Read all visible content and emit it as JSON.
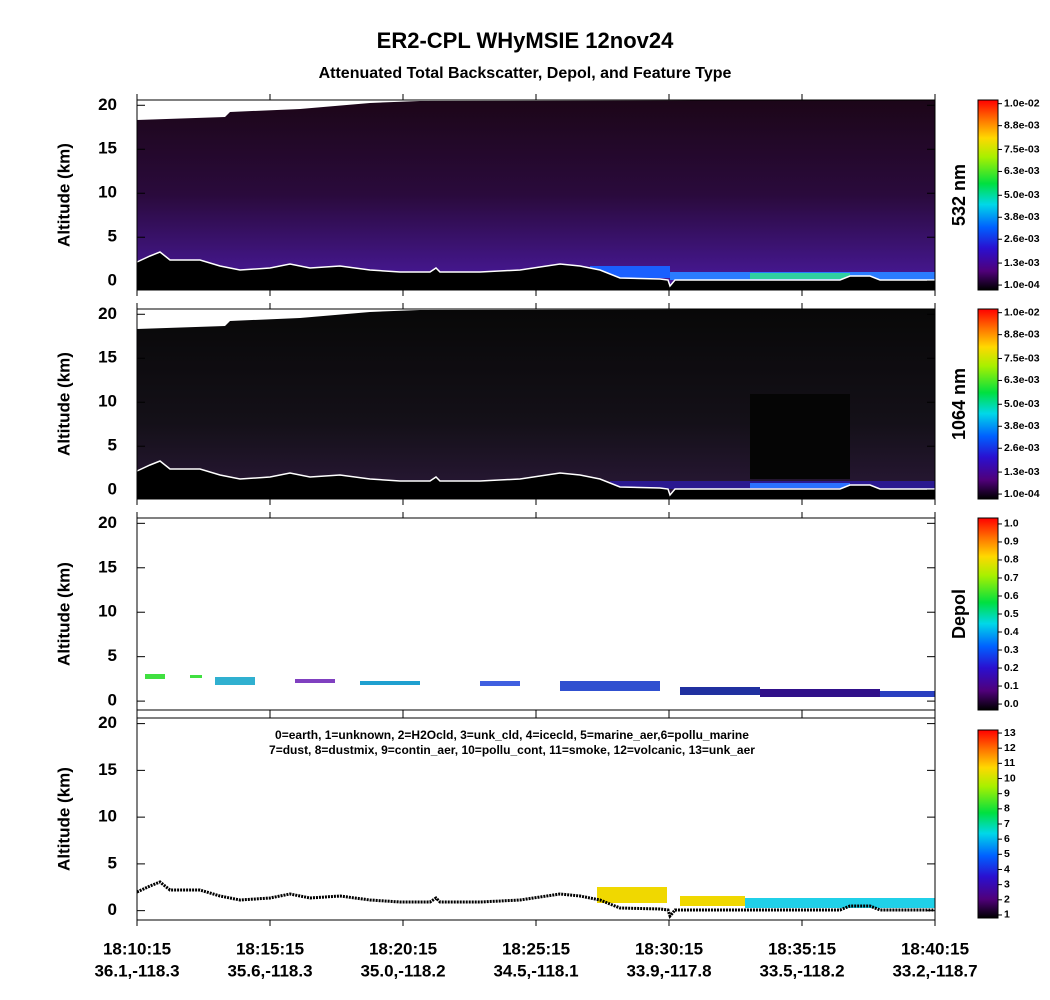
{
  "header": {
    "title": "ER2-CPL WHyMSIE 12nov24",
    "subtitle": "Attenuated Total Backscatter, Depol, and Feature Type"
  },
  "chart_data": [
    {
      "type": "heatmap",
      "ylabel": "Altitude (km)",
      "ylim": [
        -1,
        20.6
      ],
      "yticks": [
        0,
        5,
        10,
        15,
        20
      ],
      "colorbar": {
        "label": "532 nm",
        "clim": [
          -0.00017,
          0.0102
        ],
        "ticks": [
          {
            "value": 0.0001,
            "label": "1.0e-04"
          },
          {
            "value": 0.0013,
            "label": "1.3e-03"
          },
          {
            "value": 0.0026,
            "label": "2.6e-03"
          },
          {
            "value": 0.0038,
            "label": "3.8e-03"
          },
          {
            "value": 0.005,
            "label": "5.0e-03"
          },
          {
            "value": 0.0063,
            "label": "6.3e-03"
          },
          {
            "value": 0.0075,
            "label": "7.5e-03"
          },
          {
            "value": 0.0088,
            "label": "8.8e-03"
          },
          {
            "value": 0.01,
            "label": "1.0e-02"
          }
        ]
      }
    },
    {
      "type": "heatmap",
      "ylabel": "Altitude (km)",
      "ylim": [
        -1,
        20.6
      ],
      "yticks": [
        0,
        5,
        10,
        15,
        20
      ],
      "colorbar": {
        "label": "1064 nm",
        "clim": [
          -0.00017,
          0.0102
        ],
        "ticks": [
          {
            "value": 0.0001,
            "label": "1.0e-04"
          },
          {
            "value": 0.0013,
            "label": "1.3e-03"
          },
          {
            "value": 0.0026,
            "label": "2.6e-03"
          },
          {
            "value": 0.0038,
            "label": "3.8e-03"
          },
          {
            "value": 0.005,
            "label": "5.0e-03"
          },
          {
            "value": 0.0063,
            "label": "6.3e-03"
          },
          {
            "value": 0.0075,
            "label": "7.5e-03"
          },
          {
            "value": 0.0088,
            "label": "8.8e-03"
          },
          {
            "value": 0.01,
            "label": "1.0e-02"
          }
        ]
      }
    },
    {
      "type": "heatmap",
      "ylabel": "Altitude (km)",
      "ylim": [
        -1,
        20.6
      ],
      "yticks": [
        0,
        5,
        10,
        15,
        20
      ],
      "colorbar": {
        "label": "Depol",
        "clim": [
          -0.033,
          1.033
        ],
        "ticks": [
          {
            "value": 0,
            "label": "0.0"
          },
          0.1,
          0.2,
          0.3,
          0.4,
          0.5,
          0.6,
          0.7,
          0.8,
          0.9,
          {
            "value": 1,
            "label": "1.0"
          }
        ]
      }
    },
    {
      "type": "heatmap",
      "ylabel": "Altitude (km)",
      "ylim": [
        -1,
        20.6
      ],
      "yticks": [
        0,
        5,
        10,
        15,
        20
      ],
      "annotations": [
        "0=earth, 1=unknown, 2=H2Ocld, 3=unk_cld, 4=icecld, 5=marine_aer,6=pollu_marine",
        "7=dust, 8=dustmix, 9=contin_aer, 10=pollu_cont, 11=smoke, 12=volcanic, 13=unk_aer"
      ],
      "colorbar": {
        "clim": [
          0.8,
          13.2
        ],
        "ticks": [
          1,
          2,
          3,
          4,
          5,
          6,
          7,
          8,
          9,
          10,
          11,
          12,
          13
        ]
      },
      "categories": [
        "18:10:15",
        "18:15:15",
        "18:20:15",
        "18:25:15",
        "18:30:15",
        "18:35:15",
        "18:40:15"
      ],
      "sublabels": [
        "36.1,-118.3",
        "35.6,-118.3",
        "35.0,-118.2",
        "34.5,-118.1",
        "33.9,-117.8",
        "33.5,-118.2",
        "33.2,-118.7"
      ]
    }
  ]
}
